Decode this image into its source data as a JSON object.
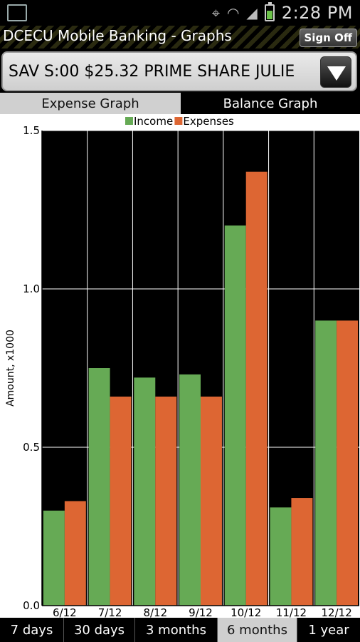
{
  "status_bar": {
    "time": "2:28 PM",
    "left_icon": "image-icon",
    "right_icons": [
      "gps-icon",
      "wifi-icon",
      "signal-icon",
      "battery-icon"
    ]
  },
  "header": {
    "title": "DCECU Mobile Banking - Graphs",
    "sign_off_label": "Sign Off"
  },
  "account_select": {
    "value": "SAV S:00 $25.32 PRIME SHARE JULIE"
  },
  "graph_tabs": [
    {
      "label": "Expense Graph",
      "selected": true
    },
    {
      "label": "Balance Graph",
      "selected": false
    }
  ],
  "range_tabs": [
    {
      "label": "7 days",
      "selected": false
    },
    {
      "label": "30 days",
      "selected": false
    },
    {
      "label": "3 months",
      "selected": false
    },
    {
      "label": "6 months",
      "selected": true
    },
    {
      "label": "1 year",
      "selected": false
    }
  ],
  "colors": {
    "income": "#66aa55",
    "expenses": "#dd6633",
    "plot_bg": "#000000",
    "grid": "#ffffff"
  },
  "chart_data": {
    "type": "bar",
    "categories": [
      "6/12",
      "7/12",
      "8/12",
      "9/12",
      "10/12",
      "11/12",
      "12/12"
    ],
    "series": [
      {
        "name": "Income",
        "values": [
          0.3,
          0.75,
          0.72,
          0.73,
          1.2,
          0.31,
          0.9
        ]
      },
      {
        "name": "Expenses",
        "values": [
          0.33,
          0.66,
          0.66,
          0.66,
          1.37,
          0.34,
          0.9
        ]
      }
    ],
    "ylabel": "Amount, x1000",
    "ylim": [
      0,
      1.5
    ],
    "yticks": [
      "0.0",
      "0.5",
      "1.0",
      "1.5"
    ],
    "legend": "top-center",
    "grid": true
  }
}
